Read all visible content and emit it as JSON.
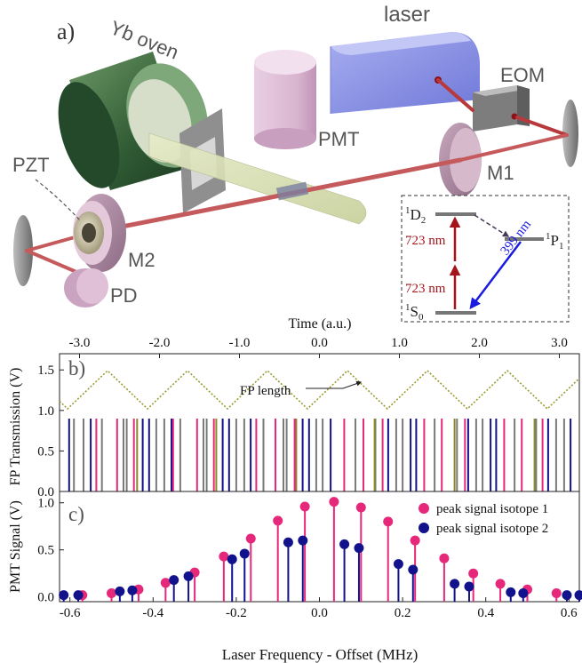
{
  "setup": {
    "panel_label": "a)",
    "labels": {
      "laser": "laser",
      "eom": "EOM",
      "yb_oven": "Yb oven",
      "pmt": "PMT",
      "pzt": "PZT",
      "m1": "M1",
      "m2": "M2",
      "pd": "PD"
    },
    "level_diagram": {
      "upper_state": "D",
      "upper_state_mult": "1",
      "upper_state_sub": "2",
      "intermediate_state": "P",
      "intermediate_state_mult": "1",
      "intermediate_state_sub": "1",
      "ground_state": "S",
      "ground_state_mult": "1",
      "ground_state_sub": "0",
      "step1": "723 nm",
      "step2": "723 nm",
      "decay": "399 nm"
    }
  },
  "colors": {
    "isotope1": "#e6287a",
    "isotope2": "#12128c",
    "grey_line": "#7a7a7a",
    "olive_line": "#8a8a2a",
    "fp_length": "#9a9a30",
    "red_arrow": "#a3141b",
    "blue_arrow": "#1a1ae0"
  },
  "chart_data": [
    {
      "type": "line",
      "panel_label": "b)",
      "top_axis_label": "Time (a.u.)",
      "top_ticks": [
        -3.0,
        -2.0,
        -1.0,
        0.0,
        1.0,
        2.0,
        3.0
      ],
      "top_tick_labels": [
        "-3.0",
        "-2.0",
        "-1.0",
        "0.0",
        "1.0",
        "2.0",
        "3.0"
      ],
      "xlim": [
        -3.25,
        3.25
      ],
      "ylabel": "FP Transmission (V)",
      "ylim": [
        0,
        1.7
      ],
      "yticks": [
        0.0,
        0.5,
        1.0,
        1.5
      ],
      "ytick_labels": [
        "0.0",
        "0.5",
        "1.0",
        "1.5"
      ],
      "annotation": "FP length",
      "fp_length": {
        "name": "FP length",
        "peaks": [
          -2.65,
          -1.65,
          -0.65,
          0.35,
          1.35,
          2.35
        ],
        "troughs": [
          -3.15,
          -2.15,
          -1.15,
          -0.15,
          0.85,
          1.85,
          2.85
        ],
        "high": 1.49,
        "low": 1.02
      },
      "transmission_peaks": {
        "height": 0.9,
        "isotope1_times": [
          -2.79,
          -2.53,
          -2.32,
          -1.83,
          -1.53,
          -1.32,
          -0.79,
          -0.55,
          -0.31,
          0.31,
          0.55,
          0.79,
          1.31,
          1.53,
          1.82,
          2.31,
          2.53,
          2.79
        ],
        "isotope2_times": [
          -3.13,
          -2.86,
          -2.21,
          -2.13,
          -1.85,
          -1.21,
          -1.13,
          -0.86,
          -0.21,
          -0.13,
          0.14,
          0.86,
          1.14,
          1.21,
          1.86,
          2.14,
          2.21,
          2.86,
          3.14
        ],
        "grey_times": [
          -3.07,
          -2.95,
          -2.72,
          -2.45,
          -2.41,
          -2.04,
          -1.94,
          -1.74,
          -1.45,
          -1.41,
          -1.04,
          -0.94,
          -0.7,
          -0.45,
          -0.41,
          -0.04,
          0.04,
          0.45,
          0.7,
          0.96,
          1.04,
          1.44,
          1.72,
          1.96,
          2.04,
          2.44,
          2.71,
          2.96,
          3.06
        ],
        "olive_times": [
          -2.28,
          -1.29,
          -0.29,
          0.69,
          1.69,
          2.69
        ]
      }
    },
    {
      "type": "scatter",
      "panel_label": "c)",
      "xlabel": "Laser Frequency - Offset (MHz)",
      "ylabel": "PMT Signal (V)",
      "xlim": [
        -0.625,
        0.625
      ],
      "ylim": [
        -0.05,
        1.12
      ],
      "xticks": [
        -0.6,
        -0.4,
        -0.2,
        0.0,
        0.2,
        0.4,
        0.6
      ],
      "xtick_labels": [
        "-0.6",
        "-0.4",
        "-0.2",
        "0.0",
        "0.2",
        "0.4",
        "0.6"
      ],
      "yticks": [
        0.0,
        0.5,
        1.0
      ],
      "ytick_labels": [
        "0.0",
        "0.5",
        "1.0"
      ],
      "legend_position": "top-right",
      "series": [
        {
          "name": "peak signal isotope 1",
          "x": [
            -0.57,
            -0.5,
            -0.435,
            -0.37,
            -0.3,
            -0.23,
            -0.165,
            -0.1,
            -0.035,
            0.035,
            0.1,
            0.165,
            0.23,
            0.3,
            0.37,
            0.435,
            0.5,
            0.57
          ],
          "y": [
            0.02,
            0.04,
            0.08,
            0.15,
            0.26,
            0.43,
            0.62,
            0.81,
            0.96,
            1.01,
            0.95,
            0.8,
            0.6,
            0.41,
            0.25,
            0.14,
            0.08,
            0.04
          ]
        },
        {
          "name": "peak signal isotope 2",
          "x": [
            -0.615,
            -0.58,
            -0.48,
            -0.45,
            -0.35,
            -0.315,
            -0.21,
            -0.18,
            -0.075,
            -0.04,
            0.06,
            0.095,
            0.19,
            0.225,
            0.325,
            0.36,
            0.46,
            0.49,
            0.595,
            0.625
          ],
          "y": [
            0.02,
            0.02,
            0.06,
            0.07,
            0.18,
            0.22,
            0.4,
            0.46,
            0.58,
            0.6,
            0.56,
            0.52,
            0.35,
            0.29,
            0.14,
            0.11,
            0.05,
            0.04,
            0.02,
            0.02
          ]
        }
      ]
    }
  ]
}
